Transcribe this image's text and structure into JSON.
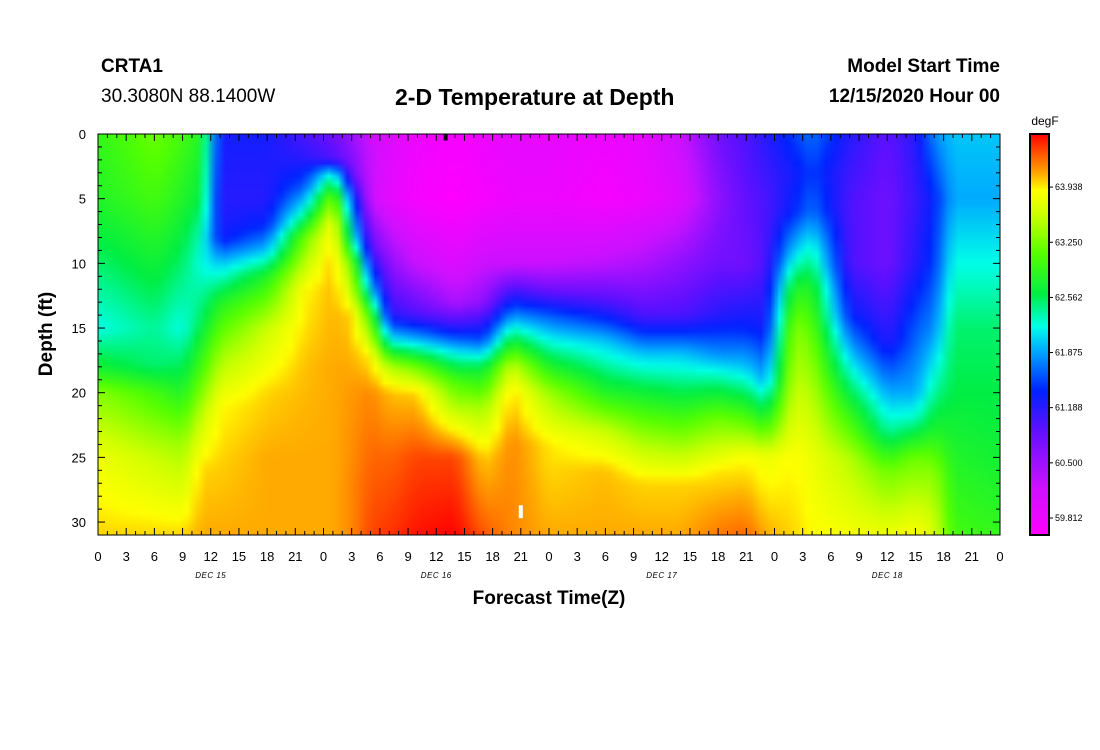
{
  "header": {
    "station": "CRTA1",
    "coords": "30.3080N 88.1400W",
    "title": "2-D Temperature at Depth",
    "model_start_label": "Model Start Time",
    "model_start_value": "12/15/2020 Hour 00"
  },
  "chart_data": {
    "type": "heatmap",
    "title": "2-D Temperature at Depth",
    "xlabel": "Forecast Time(Z)",
    "ylabel": "Depth (ft)",
    "units": "degF",
    "x_range_hours": [
      0,
      96
    ],
    "y_range_ft": [
      0,
      31
    ],
    "x_tick_labels": [
      "0",
      "3",
      "6",
      "9",
      "12",
      "15",
      "18",
      "21",
      "0",
      "3",
      "6",
      "9",
      "12",
      "15",
      "18",
      "21",
      "0",
      "3",
      "6",
      "9",
      "12",
      "15",
      "18",
      "21",
      "0",
      "3",
      "6",
      "9",
      "12",
      "15",
      "18",
      "21",
      "0"
    ],
    "day_labels": [
      {
        "text": "DEC 15",
        "hour": 12
      },
      {
        "text": "DEC 16",
        "hour": 36
      },
      {
        "text": "DEC 17",
        "hour": 60
      },
      {
        "text": "DEC 18",
        "hour": 84
      }
    ],
    "y_ticks": [
      0,
      5,
      10,
      15,
      20,
      25,
      30
    ],
    "colorbar_min": 59.6,
    "colorbar_max": 64.6,
    "colorbar_labels": [
      "63.938",
      "63.250",
      "62.562",
      "61.875",
      "61.188",
      "60.500",
      "59.812"
    ],
    "colorbar_label_values": [
      63.938,
      63.25,
      62.562,
      61.875,
      61.188,
      60.5,
      59.812
    ],
    "color_stops": [
      {
        "v": 59.6,
        "c": "#ff00ff"
      },
      {
        "v": 60.2,
        "c": "#cc11ff"
      },
      {
        "v": 60.9,
        "c": "#6010ff"
      },
      {
        "v": 61.4,
        "c": "#0022ff"
      },
      {
        "v": 61.9,
        "c": "#00aaff"
      },
      {
        "v": 62.2,
        "c": "#00ffe8"
      },
      {
        "v": 62.6,
        "c": "#00ee44"
      },
      {
        "v": 63.1,
        "c": "#55ff00"
      },
      {
        "v": 63.6,
        "c": "#ccff00"
      },
      {
        "v": 63.9,
        "c": "#ffff00"
      },
      {
        "v": 64.1,
        "c": "#ffaa00"
      },
      {
        "v": 64.35,
        "c": "#ff5500"
      },
      {
        "v": 64.6,
        "c": "#ff0000"
      }
    ],
    "columns": [
      {
        "h": 0,
        "d": [
          0,
          5,
          10,
          15,
          18,
          20,
          25,
          31
        ],
        "t": [
          62.9,
          62.8,
          62.5,
          62.2,
          62.7,
          63.3,
          63.8,
          64.0
        ]
      },
      {
        "h": 6,
        "d": [
          0,
          5,
          10,
          15,
          18,
          20,
          25,
          31
        ],
        "t": [
          63.2,
          63.0,
          62.7,
          62.4,
          62.5,
          63.0,
          63.6,
          64.0
        ]
      },
      {
        "h": 9,
        "d": [
          0,
          5,
          10,
          15,
          20,
          24,
          31
        ],
        "t": [
          63.0,
          62.8,
          62.5,
          62.2,
          62.8,
          63.4,
          64.0
        ]
      },
      {
        "h": 11,
        "d": [
          0,
          5,
          8,
          10,
          14,
          18,
          22,
          26,
          31
        ],
        "t": [
          62.8,
          62.6,
          62.3,
          62.2,
          62.5,
          63.0,
          63.6,
          64.0,
          64.1
        ]
      },
      {
        "h": 13,
        "d": [
          0,
          5,
          8,
          10,
          13,
          17,
          21,
          25,
          31
        ],
        "t": [
          61.3,
          61.2,
          61.3,
          62.0,
          62.8,
          63.4,
          63.9,
          64.0,
          64.1
        ]
      },
      {
        "h": 18,
        "d": [
          0,
          5,
          7,
          9,
          11,
          15,
          20,
          25,
          31
        ],
        "t": [
          61.3,
          61.2,
          61.4,
          62.0,
          62.8,
          63.6,
          64.0,
          64.1,
          64.1
        ]
      },
      {
        "h": 22,
        "d": [
          0,
          2,
          4,
          6,
          8,
          12,
          18,
          25,
          31
        ],
        "t": [
          61.0,
          61.2,
          61.6,
          62.3,
          63.2,
          63.9,
          64.05,
          64.1,
          64.1
        ]
      },
      {
        "h": 25,
        "d": [
          0,
          2,
          3,
          5,
          7,
          10,
          18,
          25,
          31
        ],
        "t": [
          60.8,
          61.0,
          62.2,
          63.3,
          63.9,
          64.05,
          64.1,
          64.1,
          64.1
        ]
      },
      {
        "h": 27,
        "d": [
          0,
          3,
          5,
          8,
          10,
          14,
          20,
          27,
          31
        ],
        "t": [
          60.5,
          60.8,
          61.6,
          62.3,
          63.2,
          64.0,
          64.15,
          64.2,
          64.2
        ]
      },
      {
        "h": 29,
        "d": [
          0,
          5,
          9,
          12,
          14,
          17,
          20,
          25,
          31
        ],
        "t": [
          60.2,
          60.2,
          61.0,
          62.0,
          63.0,
          63.9,
          64.2,
          64.3,
          64.4
        ]
      },
      {
        "h": 31,
        "d": [
          0,
          5,
          10,
          14,
          16,
          18,
          20,
          25,
          31
        ],
        "t": [
          60.0,
          59.9,
          60.6,
          61.2,
          62.2,
          63.5,
          64.05,
          64.3,
          64.45
        ]
      },
      {
        "h": 34,
        "d": [
          0,
          5,
          10,
          14,
          16,
          18,
          20,
          25,
          31
        ],
        "t": [
          59.8,
          59.7,
          60.2,
          61.0,
          62.0,
          63.2,
          64.0,
          64.4,
          64.55
        ]
      },
      {
        "h": 38,
        "d": [
          0,
          5,
          10,
          13,
          15,
          17,
          19,
          22,
          25,
          31
        ],
        "t": [
          59.7,
          59.6,
          60.0,
          60.4,
          61.2,
          62.2,
          63.0,
          63.7,
          64.4,
          64.6
        ]
      },
      {
        "h": 41,
        "d": [
          0,
          5,
          10,
          13,
          16,
          18,
          21,
          25,
          31
        ],
        "t": [
          59.8,
          59.7,
          60.2,
          60.6,
          61.6,
          62.6,
          63.4,
          64.0,
          64.35
        ]
      },
      {
        "h": 44,
        "d": [
          0,
          5,
          10,
          12,
          14,
          16,
          18,
          20,
          24,
          31
        ],
        "t": [
          59.9,
          59.8,
          60.2,
          61.0,
          61.8,
          62.7,
          63.6,
          64.0,
          64.2,
          64.2
        ]
      },
      {
        "h": 48,
        "d": [
          0,
          5,
          10,
          12,
          14,
          17,
          20,
          24,
          31
        ],
        "t": [
          59.9,
          59.8,
          60.2,
          60.8,
          61.6,
          62.5,
          63.4,
          63.95,
          64.1
        ]
      },
      {
        "h": 54,
        "d": [
          0,
          5,
          10,
          13,
          16,
          20,
          23,
          26,
          31
        ],
        "t": [
          59.8,
          59.7,
          60.3,
          61.0,
          62.0,
          62.8,
          63.6,
          64.05,
          64.1
        ]
      },
      {
        "h": 58,
        "d": [
          0,
          5,
          10,
          14,
          17,
          20,
          24,
          27,
          31
        ],
        "t": [
          59.9,
          59.8,
          60.4,
          61.0,
          62.0,
          62.7,
          63.5,
          64.0,
          64.1
        ]
      },
      {
        "h": 62,
        "d": [
          0,
          5,
          10,
          14,
          17,
          20,
          24,
          27,
          31
        ],
        "t": [
          60.2,
          60.0,
          60.6,
          61.0,
          62.0,
          62.6,
          63.4,
          64.0,
          64.1
        ]
      },
      {
        "h": 66,
        "d": [
          0,
          5,
          10,
          14,
          17,
          19,
          22,
          26,
          31
        ],
        "t": [
          60.8,
          60.6,
          60.8,
          61.2,
          61.8,
          62.4,
          63.2,
          63.95,
          64.25
        ]
      },
      {
        "h": 69,
        "d": [
          0,
          5,
          10,
          15,
          18,
          21,
          25,
          31
        ],
        "t": [
          61.0,
          60.9,
          60.8,
          61.4,
          62.0,
          62.8,
          63.9,
          64.3
        ]
      },
      {
        "h": 71,
        "d": [
          0,
          5,
          10,
          15,
          19,
          22,
          25,
          31
        ],
        "t": [
          61.2,
          61.0,
          61.0,
          61.3,
          61.9,
          62.8,
          63.8,
          64.1
        ]
      },
      {
        "h": 74,
        "d": [
          0,
          3,
          6,
          9,
          12,
          15,
          20,
          25,
          31
        ],
        "t": [
          61.5,
          61.3,
          61.4,
          62.0,
          62.8,
          63.3,
          63.6,
          63.9,
          64.0
        ]
      },
      {
        "h": 76,
        "d": [
          0,
          3,
          6,
          9,
          12,
          16,
          20,
          25,
          31
        ],
        "t": [
          61.7,
          61.5,
          61.7,
          62.3,
          62.8,
          63.2,
          63.5,
          63.8,
          63.9
        ]
      },
      {
        "h": 80,
        "d": [
          0,
          5,
          10,
          14,
          18,
          21,
          25,
          31
        ],
        "t": [
          61.2,
          61.0,
          61.0,
          61.4,
          62.2,
          62.8,
          63.5,
          63.85
        ]
      },
      {
        "h": 84,
        "d": [
          0,
          5,
          10,
          16,
          20,
          23,
          26,
          31
        ],
        "t": [
          60.9,
          60.8,
          60.8,
          61.2,
          61.9,
          62.4,
          63.2,
          63.8
        ]
      },
      {
        "h": 87,
        "d": [
          0,
          5,
          10,
          15,
          20,
          22,
          25,
          31
        ],
        "t": [
          61.2,
          61.1,
          61.2,
          61.6,
          61.9,
          62.3,
          63.2,
          63.9
        ]
      },
      {
        "h": 89,
        "d": [
          0,
          5,
          10,
          15,
          20,
          23,
          26,
          31
        ],
        "t": [
          61.8,
          61.4,
          61.5,
          61.8,
          62.4,
          62.8,
          63.3,
          63.7
        ]
      },
      {
        "h": 91,
        "d": [
          0,
          5,
          10,
          15,
          20,
          25,
          31
        ],
        "t": [
          62.0,
          61.9,
          62.2,
          62.5,
          62.6,
          62.8,
          63.0
        ]
      },
      {
        "h": 96,
        "d": [
          0,
          5,
          10,
          15,
          20,
          25,
          31
        ],
        "t": [
          62.0,
          61.9,
          62.2,
          62.5,
          62.6,
          62.7,
          62.9
        ]
      }
    ],
    "markers": [
      {
        "hour": 37,
        "depth_from": 0.0,
        "depth_to": 0.5,
        "color": "#000000"
      },
      {
        "hour": 45,
        "depth_from": 28.7,
        "depth_to": 29.7,
        "color": "#ffffff"
      }
    ]
  }
}
